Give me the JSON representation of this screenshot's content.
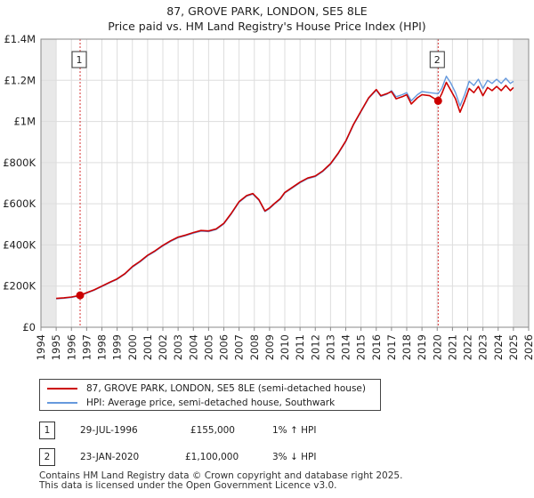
{
  "chart_data": {
    "type": "line",
    "title": "87, GROVE PARK, LONDON, SE5 8LE",
    "subtitle": "Price paid vs. HM Land Registry's House Price Index (HPI)",
    "xlabel": "",
    "ylabel": "",
    "xlim": [
      1994,
      2026
    ],
    "ylim": [
      0,
      1400000
    ],
    "x_ticks": [
      "1994",
      "1995",
      "1996",
      "1997",
      "1998",
      "1999",
      "2000",
      "2001",
      "2002",
      "2003",
      "2004",
      "2005",
      "2006",
      "2007",
      "2008",
      "2009",
      "2010",
      "2011",
      "2012",
      "2013",
      "2014",
      "2015",
      "2016",
      "2017",
      "2018",
      "2019",
      "2020",
      "2021",
      "2022",
      "2023",
      "2024",
      "2025",
      "2026"
    ],
    "y_ticks": [
      {
        "value": 0,
        "label": "£0"
      },
      {
        "value": 200000,
        "label": "£200K"
      },
      {
        "value": 400000,
        "label": "£400K"
      },
      {
        "value": 600000,
        "label": "£600K"
      },
      {
        "value": 800000,
        "label": "£800K"
      },
      {
        "value": 1000000,
        "label": "£1M"
      },
      {
        "value": 1200000,
        "label": "£1.2M"
      },
      {
        "value": 1400000,
        "label": "£1.4M"
      }
    ],
    "grid": true,
    "shaded_regions": [
      [
        1994,
        1995.0
      ],
      [
        2025.0,
        2026
      ]
    ],
    "series": [
      {
        "name": "87, GROVE PARK, LONDON, SE5 8LE (semi-detached house)",
        "color": "#cc0000",
        "x": [
          1995.0,
          1995.5,
          1996.0,
          1996.57,
          1997.0,
          1997.5,
          1998.0,
          1998.5,
          1999.0,
          1999.5,
          2000.0,
          2000.5,
          2001.0,
          2001.5,
          2002.0,
          2002.5,
          2003.0,
          2003.5,
          2004.0,
          2004.5,
          2005.0,
          2005.5,
          2006.0,
          2006.5,
          2007.0,
          2007.5,
          2007.9,
          2008.3,
          2008.7,
          2009.0,
          2009.3,
          2009.7,
          2010.0,
          2010.5,
          2011.0,
          2011.5,
          2012.0,
          2012.5,
          2013.0,
          2013.5,
          2014.0,
          2014.5,
          2015.0,
          2015.5,
          2016.0,
          2016.3,
          2016.7,
          2017.0,
          2017.3,
          2017.7,
          2018.0,
          2018.3,
          2018.7,
          2019.0,
          2019.5,
          2020.06,
          2020.3,
          2020.6,
          2020.9,
          2021.2,
          2021.5,
          2021.8,
          2022.1,
          2022.4,
          2022.7,
          2023.0,
          2023.3,
          2023.6,
          2023.9,
          2024.2,
          2024.5,
          2024.8,
          2025.0
        ],
        "y": [
          140000,
          143000,
          147000,
          155000,
          168000,
          182000,
          200000,
          218000,
          235000,
          260000,
          295000,
          320000,
          350000,
          372000,
          398000,
          420000,
          438000,
          448000,
          460000,
          470000,
          468000,
          478000,
          505000,
          555000,
          610000,
          640000,
          650000,
          620000,
          565000,
          580000,
          600000,
          625000,
          655000,
          680000,
          705000,
          725000,
          735000,
          760000,
          795000,
          845000,
          905000,
          985000,
          1050000,
          1115000,
          1155000,
          1125000,
          1135000,
          1145000,
          1110000,
          1120000,
          1130000,
          1085000,
          1115000,
          1130000,
          1125000,
          1100000,
          1135000,
          1190000,
          1150000,
          1110000,
          1045000,
          1100000,
          1160000,
          1140000,
          1170000,
          1125000,
          1165000,
          1150000,
          1170000,
          1150000,
          1175000,
          1150000,
          1165000
        ]
      },
      {
        "name": "HPI: Average price, semi-detached house, Southwark",
        "color": "#6699dd",
        "x": [
          1995.0,
          1995.5,
          1996.0,
          1996.57,
          1997.0,
          1997.5,
          1998.0,
          1998.5,
          1999.0,
          1999.5,
          2000.0,
          2000.5,
          2001.0,
          2001.5,
          2002.0,
          2002.5,
          2003.0,
          2003.5,
          2004.0,
          2004.5,
          2005.0,
          2005.5,
          2006.0,
          2006.5,
          2007.0,
          2007.5,
          2007.9,
          2008.3,
          2008.7,
          2009.0,
          2009.3,
          2009.7,
          2010.0,
          2010.5,
          2011.0,
          2011.5,
          2012.0,
          2012.5,
          2013.0,
          2013.5,
          2014.0,
          2014.5,
          2015.0,
          2015.5,
          2016.0,
          2016.3,
          2016.7,
          2017.0,
          2017.3,
          2017.7,
          2018.0,
          2018.3,
          2018.7,
          2019.0,
          2019.5,
          2020.06,
          2020.3,
          2020.6,
          2020.9,
          2021.2,
          2021.5,
          2021.8,
          2022.1,
          2022.4,
          2022.7,
          2023.0,
          2023.3,
          2023.6,
          2023.9,
          2024.2,
          2024.5,
          2024.8,
          2025.0
        ],
        "y": [
          138000,
          141000,
          145000,
          153000,
          166000,
          180000,
          198000,
          216000,
          233000,
          258000,
          292000,
          317000,
          347000,
          369000,
          395000,
          417000,
          435000,
          445000,
          457000,
          467000,
          465000,
          475000,
          502000,
          552000,
          607000,
          637000,
          647000,
          617000,
          562000,
          577000,
          597000,
          622000,
          652000,
          677000,
          702000,
          722000,
          732000,
          757000,
          792000,
          842000,
          902000,
          982000,
          1047000,
          1112000,
          1152000,
          1122000,
          1132000,
          1150000,
          1120000,
          1130000,
          1140000,
          1100000,
          1130000,
          1145000,
          1140000,
          1135000,
          1160000,
          1220000,
          1185000,
          1140000,
          1075000,
          1130000,
          1195000,
          1175000,
          1205000,
          1160000,
          1200000,
          1185000,
          1205000,
          1185000,
          1210000,
          1185000,
          1195000
        ]
      }
    ],
    "sale_points": [
      {
        "label": "1",
        "x": 1996.57,
        "y": 155000
      },
      {
        "label": "2",
        "x": 2020.06,
        "y": 1100000
      }
    ]
  },
  "title_line1": "87, GROVE PARK, LONDON, SE5 8LE",
  "title_line2": "Price paid vs. HM Land Registry's House Price Index (HPI)",
  "legend": {
    "property_label": "87, GROVE PARK, LONDON, SE5 8LE (semi-detached house)",
    "hpi_label": "HPI: Average price, semi-detached house, Southwark"
  },
  "sales": [
    {
      "num": "1",
      "date": "29-JUL-1996",
      "price": "£155,000",
      "hpi": "1% ↑ HPI"
    },
    {
      "num": "2",
      "date": "23-JAN-2020",
      "price": "£1,100,000",
      "hpi": "3% ↓ HPI"
    }
  ],
  "footer": {
    "line1": "Contains HM Land Registry data © Crown copyright and database right 2025.",
    "line2": "This data is licensed under the Open Government Licence v3.0."
  },
  "colors": {
    "property": "#cc0000",
    "hpi": "#6699dd",
    "grid": "#dddddd",
    "shade": "#e8e8e8"
  }
}
